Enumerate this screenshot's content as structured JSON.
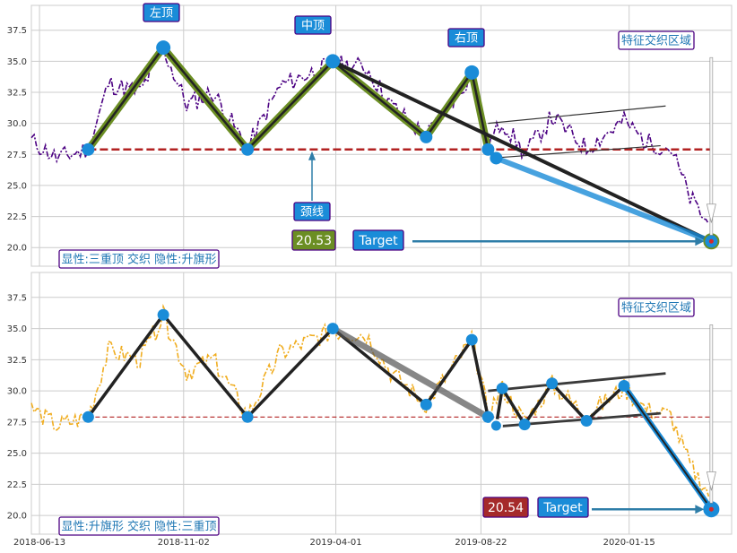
{
  "chart_data": [
    {
      "type": "line",
      "title": "",
      "ylim": [
        18.5,
        39.5
      ],
      "yticks": [
        20.0,
        22.5,
        25.0,
        27.5,
        30.0,
        32.5,
        35.0,
        37.5
      ],
      "ytick_labels": [
        "20.0",
        "22.5",
        "25.0",
        "27.5",
        "30.0",
        "32.5",
        "35.0",
        "37.5"
      ],
      "grid": true,
      "price_color": "#4b0082",
      "neckline": 27.9,
      "neckline_color": "#b22222",
      "triple_top_points": [
        {
          "date": "2018-07-31",
          "value": 27.9
        },
        {
          "date": "2018-10-13",
          "value": 36.1
        },
        {
          "date": "2019-01-04",
          "value": 27.9
        },
        {
          "date": "2019-03-29",
          "value": 35.0
        },
        {
          "date": "2019-06-29",
          "value": 28.9
        },
        {
          "date": "2019-08-13",
          "value": 34.1
        },
        {
          "date": "2019-08-29",
          "value": 27.9
        },
        {
          "date": "2019-09-06",
          "value": 27.2
        },
        {
          "date": "2020-04-05",
          "value": 20.5
        }
      ],
      "flag_upper": [
        {
          "date": "2019-08-29",
          "value": 30.0
        },
        {
          "date": "2020-02-20",
          "value": 31.4
        }
      ],
      "flag_lower": [
        {
          "date": "2019-09-01",
          "value": 27.2
        },
        {
          "date": "2020-02-15",
          "value": 28.2
        }
      ],
      "annotations": {
        "left_top": "左顶",
        "mid_top": "中顶",
        "right_top": "右顶",
        "zone": "特征交织区域",
        "neckline_label": "颈线",
        "value_box": "20.53",
        "value_box_color": "#6b8e23",
        "target": "Target",
        "caption": "显性:三重顶 交织 隐性:升旗形"
      }
    },
    {
      "type": "line",
      "title": "",
      "ylim": [
        18.5,
        39.5
      ],
      "yticks": [
        20.0,
        22.5,
        25.0,
        27.5,
        30.0,
        32.5,
        35.0,
        37.5
      ],
      "ytick_labels": [
        "20.0",
        "22.5",
        "25.0",
        "27.5",
        "30.0",
        "32.5",
        "35.0",
        "37.5"
      ],
      "grid": true,
      "price_color": "#f0ad20",
      "neckline": 27.9,
      "neckline_color": "#b22222",
      "flag_points": [
        {
          "date": "2019-08-29",
          "value": 27.9
        },
        {
          "date": "2019-09-06",
          "value": 27.2
        },
        {
          "date": "2019-09-12",
          "value": 30.2
        },
        {
          "date": "2019-10-04",
          "value": 27.3
        },
        {
          "date": "2019-10-31",
          "value": 30.6
        },
        {
          "date": "2019-12-04",
          "value": 27.6
        },
        {
          "date": "2020-01-10",
          "value": 30.4
        },
        {
          "date": "2020-04-05",
          "value": 20.5
        }
      ],
      "flag_upper": [
        {
          "date": "2019-08-29",
          "value": 30.0
        },
        {
          "date": "2020-02-20",
          "value": 31.4
        }
      ],
      "flag_lower": [
        {
          "date": "2019-09-01",
          "value": 27.1
        },
        {
          "date": "2020-02-15",
          "value": 28.2
        }
      ],
      "triple_top_points": [
        {
          "date": "2018-07-31",
          "value": 27.9
        },
        {
          "date": "2018-10-13",
          "value": 36.1
        },
        {
          "date": "2019-01-04",
          "value": 27.9
        },
        {
          "date": "2019-03-29",
          "value": 35.0
        },
        {
          "date": "2019-06-29",
          "value": 28.9
        },
        {
          "date": "2019-08-13",
          "value": 34.1
        },
        {
          "date": "2019-08-29",
          "value": 27.9
        }
      ],
      "annotations": {
        "zone": "特征交织区域",
        "value_box": "20.54",
        "value_box_color": "#a52a2a",
        "target": "Target",
        "caption": "显性:升旗形 交织 隐性:三重顶"
      }
    }
  ],
  "x_axis": {
    "range": [
      "2018-06-05",
      "2020-04-25"
    ],
    "ticks": [
      "2018-06-13",
      "2018-11-02",
      "2019-04-01",
      "2019-08-22",
      "2020-01-15"
    ],
    "tick_labels": [
      "2018-06-13",
      "2018-11-02",
      "2019-04-01",
      "2019-08-22",
      "2020-01-15"
    ]
  },
  "colors": {
    "accent_blue": "#1a8cd8",
    "label_border": "#4b0082",
    "dark_line": "#222222",
    "green_line": "#6b8e23",
    "grid": "#cccccc"
  }
}
